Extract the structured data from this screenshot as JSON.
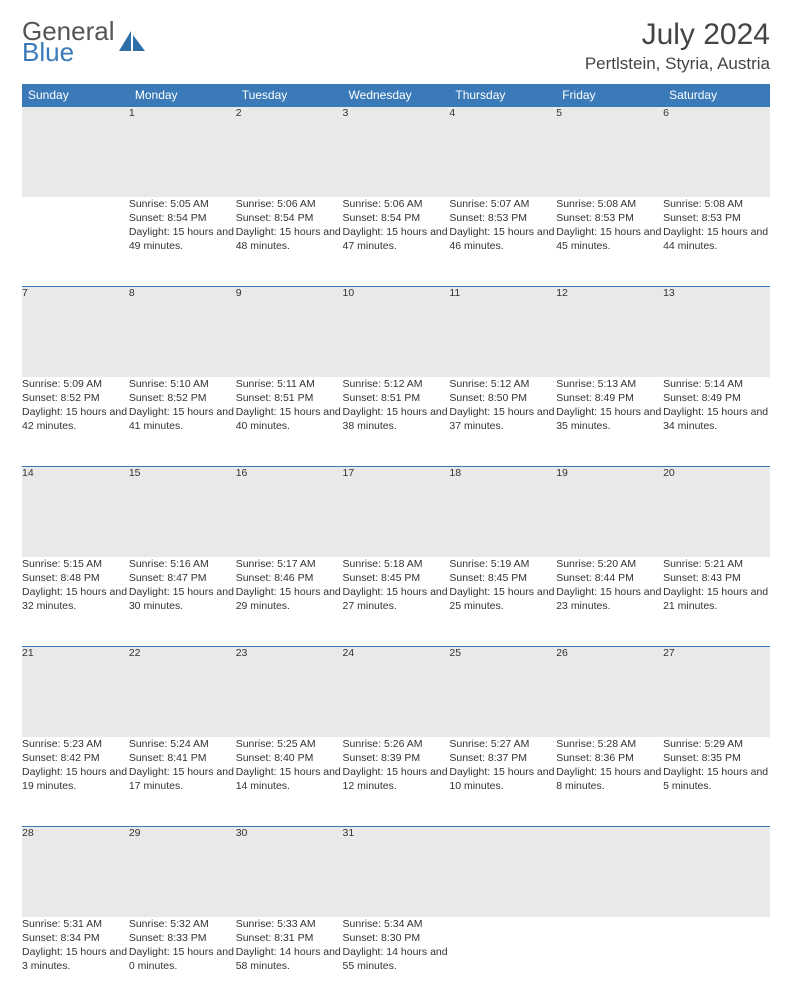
{
  "brand": {
    "word1": "General",
    "word2": "Blue"
  },
  "title": "July 2024",
  "location": "Pertlstein, Styria, Austria",
  "header_color": "#3a7ab8",
  "daynum_bg": "#e9e9e9",
  "weekdays": [
    "Sunday",
    "Monday",
    "Tuesday",
    "Wednesday",
    "Thursday",
    "Friday",
    "Saturday"
  ],
  "weeks": [
    [
      null,
      {
        "n": "1",
        "sr": "5:05 AM",
        "ss": "8:54 PM",
        "dl": "15 hours and 49 minutes."
      },
      {
        "n": "2",
        "sr": "5:06 AM",
        "ss": "8:54 PM",
        "dl": "15 hours and 48 minutes."
      },
      {
        "n": "3",
        "sr": "5:06 AM",
        "ss": "8:54 PM",
        "dl": "15 hours and 47 minutes."
      },
      {
        "n": "4",
        "sr": "5:07 AM",
        "ss": "8:53 PM",
        "dl": "15 hours and 46 minutes."
      },
      {
        "n": "5",
        "sr": "5:08 AM",
        "ss": "8:53 PM",
        "dl": "15 hours and 45 minutes."
      },
      {
        "n": "6",
        "sr": "5:08 AM",
        "ss": "8:53 PM",
        "dl": "15 hours and 44 minutes."
      }
    ],
    [
      {
        "n": "7",
        "sr": "5:09 AM",
        "ss": "8:52 PM",
        "dl": "15 hours and 42 minutes."
      },
      {
        "n": "8",
        "sr": "5:10 AM",
        "ss": "8:52 PM",
        "dl": "15 hours and 41 minutes."
      },
      {
        "n": "9",
        "sr": "5:11 AM",
        "ss": "8:51 PM",
        "dl": "15 hours and 40 minutes."
      },
      {
        "n": "10",
        "sr": "5:12 AM",
        "ss": "8:51 PM",
        "dl": "15 hours and 38 minutes."
      },
      {
        "n": "11",
        "sr": "5:12 AM",
        "ss": "8:50 PM",
        "dl": "15 hours and 37 minutes."
      },
      {
        "n": "12",
        "sr": "5:13 AM",
        "ss": "8:49 PM",
        "dl": "15 hours and 35 minutes."
      },
      {
        "n": "13",
        "sr": "5:14 AM",
        "ss": "8:49 PM",
        "dl": "15 hours and 34 minutes."
      }
    ],
    [
      {
        "n": "14",
        "sr": "5:15 AM",
        "ss": "8:48 PM",
        "dl": "15 hours and 32 minutes."
      },
      {
        "n": "15",
        "sr": "5:16 AM",
        "ss": "8:47 PM",
        "dl": "15 hours and 30 minutes."
      },
      {
        "n": "16",
        "sr": "5:17 AM",
        "ss": "8:46 PM",
        "dl": "15 hours and 29 minutes."
      },
      {
        "n": "17",
        "sr": "5:18 AM",
        "ss": "8:45 PM",
        "dl": "15 hours and 27 minutes."
      },
      {
        "n": "18",
        "sr": "5:19 AM",
        "ss": "8:45 PM",
        "dl": "15 hours and 25 minutes."
      },
      {
        "n": "19",
        "sr": "5:20 AM",
        "ss": "8:44 PM",
        "dl": "15 hours and 23 minutes."
      },
      {
        "n": "20",
        "sr": "5:21 AM",
        "ss": "8:43 PM",
        "dl": "15 hours and 21 minutes."
      }
    ],
    [
      {
        "n": "21",
        "sr": "5:23 AM",
        "ss": "8:42 PM",
        "dl": "15 hours and 19 minutes."
      },
      {
        "n": "22",
        "sr": "5:24 AM",
        "ss": "8:41 PM",
        "dl": "15 hours and 17 minutes."
      },
      {
        "n": "23",
        "sr": "5:25 AM",
        "ss": "8:40 PM",
        "dl": "15 hours and 14 minutes."
      },
      {
        "n": "24",
        "sr": "5:26 AM",
        "ss": "8:39 PM",
        "dl": "15 hours and 12 minutes."
      },
      {
        "n": "25",
        "sr": "5:27 AM",
        "ss": "8:37 PM",
        "dl": "15 hours and 10 minutes."
      },
      {
        "n": "26",
        "sr": "5:28 AM",
        "ss": "8:36 PM",
        "dl": "15 hours and 8 minutes."
      },
      {
        "n": "27",
        "sr": "5:29 AM",
        "ss": "8:35 PM",
        "dl": "15 hours and 5 minutes."
      }
    ],
    [
      {
        "n": "28",
        "sr": "5:31 AM",
        "ss": "8:34 PM",
        "dl": "15 hours and 3 minutes."
      },
      {
        "n": "29",
        "sr": "5:32 AM",
        "ss": "8:33 PM",
        "dl": "15 hours and 0 minutes."
      },
      {
        "n": "30",
        "sr": "5:33 AM",
        "ss": "8:31 PM",
        "dl": "14 hours and 58 minutes."
      },
      {
        "n": "31",
        "sr": "5:34 AM",
        "ss": "8:30 PM",
        "dl": "14 hours and 55 minutes."
      },
      null,
      null,
      null
    ]
  ],
  "labels": {
    "sunrise": "Sunrise: ",
    "sunset": "Sunset: ",
    "daylight": "Daylight: "
  }
}
